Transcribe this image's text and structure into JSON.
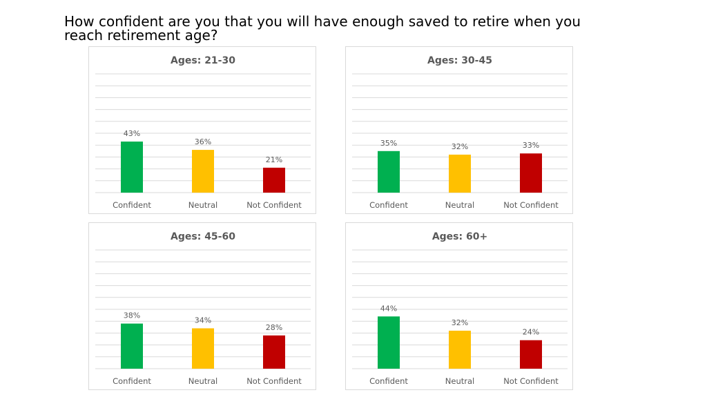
{
  "page": {
    "title": "How confident are you that you will have enough saved to retire when you reach retirement age?"
  },
  "colors": {
    "confident": "#00b050",
    "neutral": "#ffc000",
    "not_confident": "#c00000",
    "gridline": "#d9d9d9",
    "label_text": "#595959"
  },
  "chart_data": [
    {
      "type": "bar",
      "title": "Ages: 21-30",
      "categories": [
        "Confident",
        "Neutral",
        "Not Confident"
      ],
      "values": [
        43,
        36,
        21
      ],
      "data_labels": [
        "43%",
        "36%",
        "21%"
      ],
      "ylim": [
        0,
        100
      ],
      "grid": true,
      "legend": "none"
    },
    {
      "type": "bar",
      "title": "Ages: 30-45",
      "categories": [
        "Confident",
        "Neutral",
        "Not Confident"
      ],
      "values": [
        35,
        32,
        33
      ],
      "data_labels": [
        "35%",
        "32%",
        "33%"
      ],
      "ylim": [
        0,
        100
      ],
      "grid": true,
      "legend": "none"
    },
    {
      "type": "bar",
      "title": "Ages: 45-60",
      "categories": [
        "Confident",
        "Neutral",
        "Not Confident"
      ],
      "values": [
        38,
        34,
        28
      ],
      "data_labels": [
        "38%",
        "34%",
        "28%"
      ],
      "ylim": [
        0,
        100
      ],
      "grid": true,
      "legend": "none"
    },
    {
      "type": "bar",
      "title": "Ages: 60+",
      "categories": [
        "Confident",
        "Neutral",
        "Not Confident"
      ],
      "values": [
        44,
        32,
        24
      ],
      "data_labels": [
        "44%",
        "32%",
        "24%"
      ],
      "ylim": [
        0,
        100
      ],
      "grid": true,
      "legend": "none"
    }
  ]
}
